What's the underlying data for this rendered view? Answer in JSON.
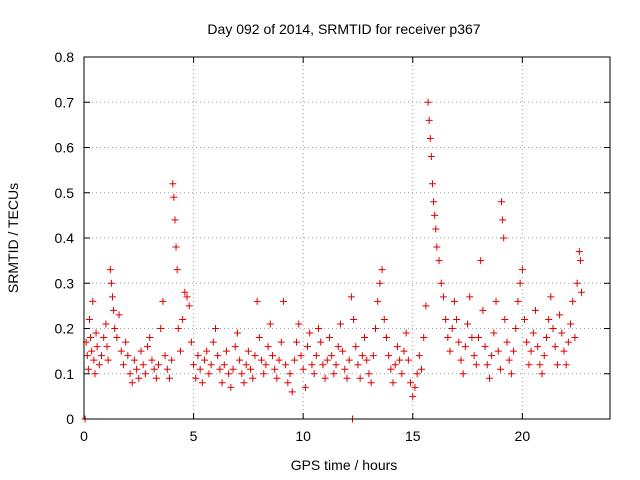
{
  "colors": {
    "series": "#e00000",
    "grid": "#a0a0a0",
    "frame": "#000000",
    "background": "#ffffff"
  },
  "chart_data": {
    "type": "scatter",
    "title": "Day 092 of 2014, SRMTID for receiver p367",
    "xlabel": "GPS time / hours",
    "ylabel": "SRMTID / TECUs",
    "xlim": [
      0,
      24
    ],
    "ylim": [
      0,
      0.8
    ],
    "xticks": [
      0,
      5,
      10,
      15,
      20
    ],
    "xtick_labels": [
      "0",
      "5",
      "10",
      "15",
      "20"
    ],
    "yticks": [
      0,
      0.1,
      0.2,
      0.3,
      0.4,
      0.5,
      0.6,
      0.7,
      0.8
    ],
    "ytick_labels": [
      "0",
      "0.1",
      "0.2",
      "0.3",
      "0.4",
      "0.5",
      "0.6",
      "0.7",
      "0.8"
    ],
    "grid": true,
    "marker": "plus",
    "series": [
      {
        "name": "SRMTID p367",
        "points": [
          [
            0.05,
            0.0
          ],
          [
            0.1,
            0.17
          ],
          [
            0.15,
            0.14
          ],
          [
            0.2,
            0.11
          ],
          [
            0.25,
            0.22
          ],
          [
            0.3,
            0.18
          ],
          [
            0.35,
            0.15
          ],
          [
            0.4,
            0.26
          ],
          [
            0.45,
            0.13
          ],
          [
            0.5,
            0.1
          ],
          [
            0.55,
            0.19
          ],
          [
            0.6,
            0.16
          ],
          [
            0.7,
            0.12
          ],
          [
            0.8,
            0.14
          ],
          [
            0.9,
            0.18
          ],
          [
            1.0,
            0.21
          ],
          [
            1.05,
            0.16
          ],
          [
            1.1,
            0.13
          ],
          [
            1.2,
            0.33
          ],
          [
            1.25,
            0.3
          ],
          [
            1.3,
            0.27
          ],
          [
            1.35,
            0.24
          ],
          [
            1.4,
            0.2
          ],
          [
            1.5,
            0.18
          ],
          [
            1.6,
            0.23
          ],
          [
            1.7,
            0.15
          ],
          [
            1.8,
            0.12
          ],
          [
            1.9,
            0.17
          ],
          [
            2.0,
            0.14
          ],
          [
            2.1,
            0.1
          ],
          [
            2.2,
            0.08
          ],
          [
            2.3,
            0.13
          ],
          [
            2.4,
            0.11
          ],
          [
            2.5,
            0.09
          ],
          [
            2.6,
            0.15
          ],
          [
            2.7,
            0.12
          ],
          [
            2.8,
            0.1
          ],
          [
            2.9,
            0.16
          ],
          [
            3.0,
            0.18
          ],
          [
            3.1,
            0.13
          ],
          [
            3.2,
            0.11
          ],
          [
            3.3,
            0.09
          ],
          [
            3.4,
            0.12
          ],
          [
            3.5,
            0.2
          ],
          [
            3.6,
            0.26
          ],
          [
            3.7,
            0.14
          ],
          [
            3.8,
            0.11
          ],
          [
            3.9,
            0.09
          ],
          [
            4.0,
            0.13
          ],
          [
            4.05,
            0.52
          ],
          [
            4.1,
            0.49
          ],
          [
            4.15,
            0.44
          ],
          [
            4.2,
            0.38
          ],
          [
            4.25,
            0.33
          ],
          [
            4.3,
            0.2
          ],
          [
            4.4,
            0.15
          ],
          [
            4.5,
            0.22
          ],
          [
            4.6,
            0.28
          ],
          [
            4.7,
            0.27
          ],
          [
            4.8,
            0.25
          ],
          [
            4.9,
            0.17
          ],
          [
            5.0,
            0.12
          ],
          [
            5.1,
            0.09
          ],
          [
            5.2,
            0.14
          ],
          [
            5.3,
            0.11
          ],
          [
            5.4,
            0.08
          ],
          [
            5.5,
            0.13
          ],
          [
            5.6,
            0.15
          ],
          [
            5.7,
            0.1
          ],
          [
            5.8,
            0.12
          ],
          [
            5.9,
            0.17
          ],
          [
            6.0,
            0.2
          ],
          [
            6.1,
            0.14
          ],
          [
            6.2,
            0.11
          ],
          [
            6.3,
            0.08
          ],
          [
            6.4,
            0.12
          ],
          [
            6.5,
            0.15
          ],
          [
            6.6,
            0.1
          ],
          [
            6.7,
            0.07
          ],
          [
            6.8,
            0.11
          ],
          [
            6.9,
            0.16
          ],
          [
            7.0,
            0.19
          ],
          [
            7.1,
            0.13
          ],
          [
            7.2,
            0.1
          ],
          [
            7.3,
            0.08
          ],
          [
            7.4,
            0.12
          ],
          [
            7.5,
            0.15
          ],
          [
            7.6,
            0.11
          ],
          [
            7.7,
            0.09
          ],
          [
            7.8,
            0.14
          ],
          [
            7.9,
            0.26
          ],
          [
            8.0,
            0.18
          ],
          [
            8.1,
            0.13
          ],
          [
            8.2,
            0.1
          ],
          [
            8.3,
            0.12
          ],
          [
            8.4,
            0.16
          ],
          [
            8.5,
            0.21
          ],
          [
            8.6,
            0.14
          ],
          [
            8.7,
            0.11
          ],
          [
            8.8,
            0.09
          ],
          [
            8.9,
            0.13
          ],
          [
            9.0,
            0.17
          ],
          [
            9.1,
            0.26
          ],
          [
            9.2,
            0.12
          ],
          [
            9.3,
            0.08
          ],
          [
            9.4,
            0.1
          ],
          [
            9.5,
            0.06
          ],
          [
            9.6,
            0.13
          ],
          [
            9.7,
            0.17
          ],
          [
            9.8,
            0.21
          ],
          [
            9.9,
            0.14
          ],
          [
            10.0,
            0.11
          ],
          [
            10.1,
            0.07
          ],
          [
            10.2,
            0.16
          ],
          [
            10.3,
            0.19
          ],
          [
            10.4,
            0.12
          ],
          [
            10.5,
            0.1
          ],
          [
            10.6,
            0.14
          ],
          [
            10.7,
            0.2
          ],
          [
            10.8,
            0.17
          ],
          [
            10.9,
            0.12
          ],
          [
            11.0,
            0.09
          ],
          [
            11.1,
            0.13
          ],
          [
            11.2,
            0.18
          ],
          [
            11.3,
            0.14
          ],
          [
            11.4,
            0.1
          ],
          [
            11.5,
            0.12
          ],
          [
            11.6,
            0.16
          ],
          [
            11.7,
            0.21
          ],
          [
            11.8,
            0.15
          ],
          [
            11.9,
            0.11
          ],
          [
            12.0,
            0.09
          ],
          [
            12.1,
            0.13
          ],
          [
            12.2,
            0.27
          ],
          [
            12.25,
            0.0
          ],
          [
            12.3,
            0.22
          ],
          [
            12.4,
            0.16
          ],
          [
            12.5,
            0.12
          ],
          [
            12.6,
            0.09
          ],
          [
            12.7,
            0.14
          ],
          [
            12.8,
            0.18
          ],
          [
            12.9,
            0.13
          ],
          [
            13.0,
            0.1
          ],
          [
            13.1,
            0.08
          ],
          [
            13.2,
            0.14
          ],
          [
            13.3,
            0.2
          ],
          [
            13.4,
            0.26
          ],
          [
            13.5,
            0.3
          ],
          [
            13.6,
            0.33
          ],
          [
            13.7,
            0.22
          ],
          [
            13.8,
            0.18
          ],
          [
            13.9,
            0.14
          ],
          [
            14.0,
            0.11
          ],
          [
            14.1,
            0.08
          ],
          [
            14.2,
            0.12
          ],
          [
            14.3,
            0.16
          ],
          [
            14.4,
            0.13
          ],
          [
            14.5,
            0.1
          ],
          [
            14.6,
            0.15
          ],
          [
            14.7,
            0.19
          ],
          [
            14.8,
            0.13
          ],
          [
            14.9,
            0.08
          ],
          [
            15.0,
            0.05
          ],
          [
            15.1,
            0.07
          ],
          [
            15.2,
            0.1
          ],
          [
            15.3,
            0.14
          ],
          [
            15.4,
            0.11
          ],
          [
            15.5,
            0.18
          ],
          [
            15.6,
            0.25
          ],
          [
            15.7,
            0.7
          ],
          [
            15.75,
            0.66
          ],
          [
            15.8,
            0.62
          ],
          [
            15.85,
            0.58
          ],
          [
            15.9,
            0.52
          ],
          [
            15.95,
            0.48
          ],
          [
            16.0,
            0.45
          ],
          [
            16.05,
            0.42
          ],
          [
            16.1,
            0.38
          ],
          [
            16.2,
            0.35
          ],
          [
            16.3,
            0.3
          ],
          [
            16.4,
            0.27
          ],
          [
            16.5,
            0.22
          ],
          [
            16.6,
            0.18
          ],
          [
            16.7,
            0.15
          ],
          [
            16.8,
            0.2
          ],
          [
            16.9,
            0.26
          ],
          [
            17.0,
            0.22
          ],
          [
            17.1,
            0.17
          ],
          [
            17.2,
            0.13
          ],
          [
            17.3,
            0.1
          ],
          [
            17.4,
            0.16
          ],
          [
            17.5,
            0.21
          ],
          [
            17.6,
            0.27
          ],
          [
            17.7,
            0.18
          ],
          [
            17.8,
            0.14
          ],
          [
            17.9,
            0.12
          ],
          [
            18.0,
            0.18
          ],
          [
            18.1,
            0.35
          ],
          [
            18.2,
            0.24
          ],
          [
            18.3,
            0.16
          ],
          [
            18.4,
            0.12
          ],
          [
            18.5,
            0.09
          ],
          [
            18.6,
            0.14
          ],
          [
            18.7,
            0.19
          ],
          [
            18.8,
            0.26
          ],
          [
            18.9,
            0.15
          ],
          [
            19.0,
            0.11
          ],
          [
            19.05,
            0.48
          ],
          [
            19.1,
            0.44
          ],
          [
            19.15,
            0.4
          ],
          [
            19.2,
            0.22
          ],
          [
            19.3,
            0.17
          ],
          [
            19.4,
            0.13
          ],
          [
            19.5,
            0.1
          ],
          [
            19.6,
            0.15
          ],
          [
            19.7,
            0.2
          ],
          [
            19.8,
            0.26
          ],
          [
            19.9,
            0.3
          ],
          [
            20.0,
            0.33
          ],
          [
            20.1,
            0.22
          ],
          [
            20.2,
            0.17
          ],
          [
            20.3,
            0.12
          ],
          [
            20.4,
            0.15
          ],
          [
            20.5,
            0.19
          ],
          [
            20.6,
            0.24
          ],
          [
            20.7,
            0.16
          ],
          [
            20.8,
            0.12
          ],
          [
            20.9,
            0.1
          ],
          [
            21.0,
            0.14
          ],
          [
            21.1,
            0.18
          ],
          [
            21.2,
            0.22
          ],
          [
            21.3,
            0.27
          ],
          [
            21.4,
            0.2
          ],
          [
            21.5,
            0.16
          ],
          [
            21.6,
            0.12
          ],
          [
            21.7,
            0.23
          ],
          [
            21.8,
            0.19
          ],
          [
            21.9,
            0.15
          ],
          [
            22.0,
            0.12
          ],
          [
            22.1,
            0.17
          ],
          [
            22.2,
            0.21
          ],
          [
            22.3,
            0.26
          ],
          [
            22.4,
            0.18
          ],
          [
            22.5,
            0.3
          ],
          [
            22.6,
            0.37
          ],
          [
            22.65,
            0.35
          ],
          [
            22.7,
            0.28
          ]
        ]
      }
    ]
  }
}
